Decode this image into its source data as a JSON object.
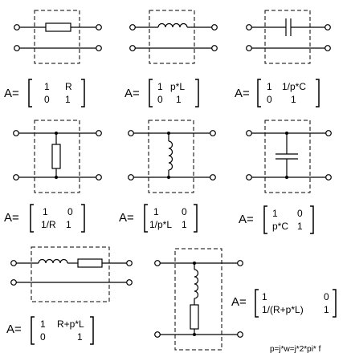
{
  "circuits": [
    {
      "id": "series-resistor",
      "component": "resistor",
      "connection": "series",
      "matrix": {
        "label": "A=",
        "cells": [
          [
            "1",
            "R"
          ],
          [
            "0",
            "1"
          ]
        ]
      }
    },
    {
      "id": "series-inductor",
      "component": "inductor",
      "connection": "series",
      "matrix": {
        "label": "A=",
        "cells": [
          [
            "1",
            "p*L"
          ],
          [
            "0",
            "1"
          ]
        ]
      }
    },
    {
      "id": "series-capacitor",
      "component": "capacitor",
      "connection": "series",
      "matrix": {
        "label": "A=",
        "cells": [
          [
            "1",
            "1/p*C"
          ],
          [
            "0",
            "1"
          ]
        ]
      }
    },
    {
      "id": "shunt-resistor",
      "component": "resistor",
      "connection": "shunt",
      "matrix": {
        "label": "A=",
        "cells": [
          [
            "1",
            "0"
          ],
          [
            "1/R",
            "1"
          ]
        ]
      }
    },
    {
      "id": "shunt-inductor",
      "component": "inductor",
      "connection": "shunt",
      "matrix": {
        "label": "A=",
        "cells": [
          [
            "1",
            "0"
          ],
          [
            "1/p*L",
            "1"
          ]
        ]
      }
    },
    {
      "id": "shunt-capacitor",
      "component": "capacitor",
      "connection": "shunt",
      "matrix": {
        "label": "A=",
        "cells": [
          [
            "1",
            "0"
          ],
          [
            "p*C",
            "1"
          ]
        ]
      }
    },
    {
      "id": "series-rl",
      "component": "inductor+resistor",
      "connection": "series",
      "matrix": {
        "label": "A=",
        "cells": [
          [
            "1",
            "R+p*L"
          ],
          [
            "0",
            "1"
          ]
        ]
      }
    },
    {
      "id": "shunt-rl",
      "component": "inductor+resistor",
      "connection": "shunt",
      "matrix": {
        "label": "A=",
        "cells": [
          [
            "1",
            "0"
          ],
          [
            "1/(R+p*L)",
            "1"
          ]
        ]
      }
    }
  ],
  "footnote": "p=j*w=j*2*pi* f"
}
